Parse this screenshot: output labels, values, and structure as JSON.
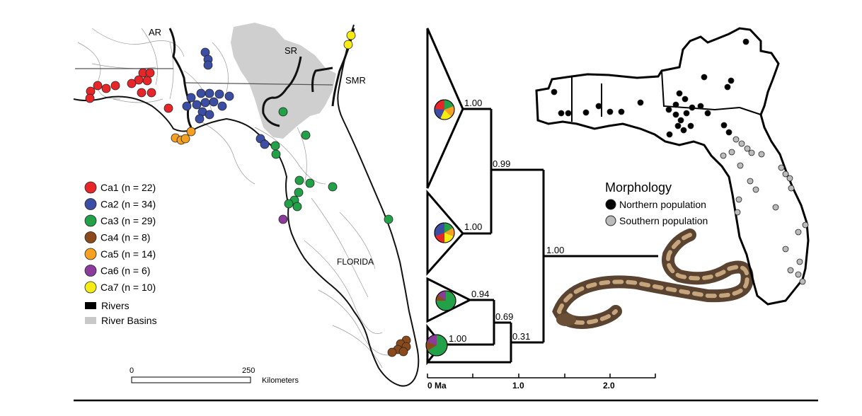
{
  "map": {
    "labels": {
      "ar": "AR",
      "sr": "SR",
      "smr": "SMR",
      "florida": "FLORIDA"
    },
    "legend": {
      "clades": [
        {
          "label": "Ca1 (n = 22)",
          "color": "#e8262a"
        },
        {
          "label": "Ca2 (n = 34)",
          "color": "#3b4ea3"
        },
        {
          "label": "Ca3 (n = 29)",
          "color": "#22a148"
        },
        {
          "label": "Ca4 (n = 8)",
          "color": "#8b4a1c"
        },
        {
          "label": "Ca5 (n = 14)",
          "color": "#f5a020"
        },
        {
          "label": "Ca6 (n = 6)",
          "color": "#8b3b9a"
        },
        {
          "label": "Ca7 (n = 10)",
          "color": "#f7ec12"
        }
      ],
      "rivers": "Rivers",
      "river_basins": "River Basins"
    },
    "scale": {
      "start": "0",
      "end": "250",
      "unit": "Kilometers"
    }
  },
  "tree": {
    "support_values": [
      "1.00",
      "1.00",
      "0.94",
      "1.00",
      "0.99",
      "0.69",
      "0.31",
      "1.00"
    ],
    "axis": {
      "ticks": [
        "0 Ma",
        "1.0",
        "2.0"
      ]
    }
  },
  "morphology": {
    "title": "Morphology",
    "items": [
      {
        "label": "Northern population",
        "color": "#000000"
      },
      {
        "label": "Southern population",
        "color": "#bbbbbb"
      }
    ]
  }
}
